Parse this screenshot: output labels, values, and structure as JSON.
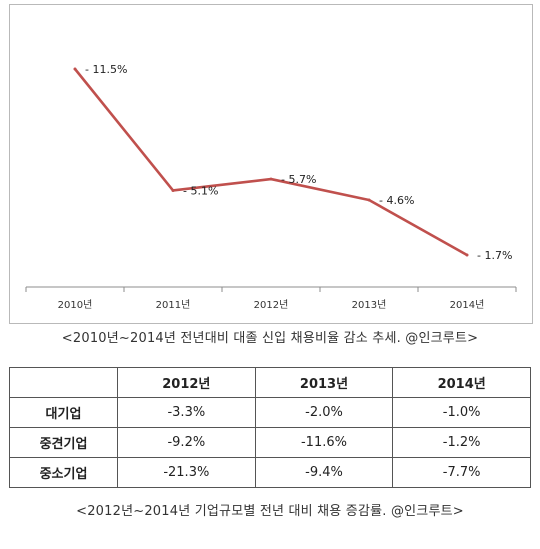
{
  "chart_data": {
    "type": "line",
    "categories": [
      "2010년",
      "2011년",
      "2012년",
      "2013년",
      "2014년"
    ],
    "values": [
      -11.5,
      -5.1,
      -5.7,
      -4.6,
      -1.7
    ],
    "labels": [
      "- 11.5%",
      "- 5.1%",
      "- 5.7%",
      "- 4.6%",
      "- 1.7%"
    ],
    "line_color": "#c0504d",
    "grid": false,
    "title": "",
    "xlabel": "",
    "ylabel": ""
  },
  "chart_caption": "<2010년~2014년 전년대비 대졸 신입 채용비율 감소 추세. @인크루트>",
  "table": {
    "headers": [
      "",
      "2012년",
      "2013년",
      "2014년"
    ],
    "rows": [
      {
        "label": "대기업",
        "values": [
          "-3.3%",
          "-2.0%",
          "-1.0%"
        ]
      },
      {
        "label": "중견기업",
        "values": [
          "-9.2%",
          "-11.6%",
          "-1.2%"
        ]
      },
      {
        "label": "중소기업",
        "values": [
          "-21.3%",
          "-9.4%",
          "-7.7%"
        ]
      }
    ]
  },
  "table_caption": "<2012년~2014년 기업규모별 전년 대비 채용 증감률. @인크루트>"
}
